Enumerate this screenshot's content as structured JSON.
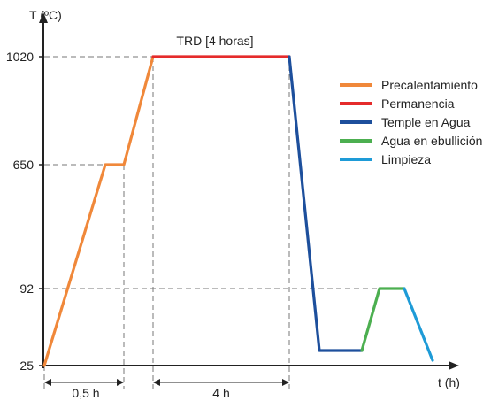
{
  "chart_data": {
    "type": "line",
    "ylabel": "T (ºC)",
    "xlabel": "t (h)",
    "y_ticks": [
      "1020",
      "650",
      "92",
      "25"
    ],
    "annotations": {
      "plateau_label": "TRD [4 horas]",
      "dim_preheat": "0,5 h",
      "dim_hold": "4 h"
    },
    "legend_position": "right",
    "series": [
      {
        "name": "Precalentamiento",
        "color": "#f0883a",
        "points": [
          [
            0,
            25
          ],
          [
            0.5,
            650
          ],
          [
            0.66,
            650
          ],
          [
            0.9,
            1020
          ]
        ]
      },
      {
        "name": "Permanencia",
        "color": "#e52b2b",
        "points": [
          [
            0.9,
            1020
          ],
          [
            4.9,
            1020
          ]
        ]
      },
      {
        "name": "Temple en Agua",
        "color": "#1d4f9c",
        "points": [
          [
            4.9,
            1020
          ],
          [
            5.3,
            -90
          ],
          [
            5.9,
            -90
          ]
        ]
      },
      {
        "name": "Agua en ebullición",
        "color": "#4caf50",
        "points": [
          [
            5.9,
            -90
          ],
          [
            6.1,
            92
          ],
          [
            6.33,
            92
          ]
        ]
      },
      {
        "name": "Limpieza",
        "color": "#1e9bd7",
        "points": [
          [
            6.33,
            92
          ],
          [
            6.6,
            -15
          ]
        ]
      }
    ]
  }
}
